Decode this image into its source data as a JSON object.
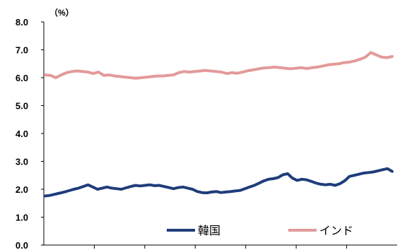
{
  "chart_data": {
    "type": "line",
    "unit_label": "（%）",
    "ylim": [
      0.0,
      8.0
    ],
    "y_ticks": [
      "0.0",
      "1.0",
      "2.0",
      "3.0",
      "4.0",
      "5.0",
      "6.0",
      "7.0",
      "8.0"
    ],
    "x_sections": 7,
    "grid": false,
    "legend_placement": "bottom-right",
    "series": [
      {
        "name": "韓国",
        "color": "#1f3d7a",
        "values": [
          1.76,
          1.78,
          1.82,
          1.86,
          1.9,
          1.95,
          2.0,
          2.04,
          2.1,
          2.16,
          2.08,
          2.0,
          2.04,
          2.08,
          2.04,
          2.02,
          2.0,
          2.05,
          2.1,
          2.14,
          2.12,
          2.14,
          2.16,
          2.13,
          2.14,
          2.1,
          2.06,
          2.02,
          2.06,
          2.08,
          2.04,
          2.0,
          1.92,
          1.88,
          1.87,
          1.9,
          1.92,
          1.88,
          1.9,
          1.92,
          1.94,
          1.96,
          2.02,
          2.08,
          2.14,
          2.22,
          2.3,
          2.36,
          2.38,
          2.42,
          2.52,
          2.56,
          2.4,
          2.32,
          2.36,
          2.34,
          2.28,
          2.22,
          2.18,
          2.16,
          2.18,
          2.14,
          2.2,
          2.3,
          2.46,
          2.5,
          2.54,
          2.58,
          2.6,
          2.62,
          2.66,
          2.7,
          2.74,
          2.64
        ]
      },
      {
        "name": "インド",
        "color": "#e39a9a",
        "values": [
          6.1,
          6.08,
          6.0,
          6.1,
          6.18,
          6.22,
          6.24,
          6.22,
          6.2,
          6.15,
          6.2,
          6.08,
          6.1,
          6.06,
          6.04,
          6.02,
          6.0,
          5.98,
          6.0,
          6.02,
          6.04,
          6.06,
          6.06,
          6.08,
          6.1,
          6.18,
          6.22,
          6.2,
          6.22,
          6.24,
          6.26,
          6.24,
          6.22,
          6.2,
          6.15,
          6.18,
          6.16,
          6.2,
          6.25,
          6.28,
          6.32,
          6.35,
          6.36,
          6.38,
          6.36,
          6.34,
          6.32,
          6.34,
          6.36,
          6.33,
          6.36,
          6.38,
          6.42,
          6.46,
          6.48,
          6.5,
          6.54,
          6.56,
          6.6,
          6.66,
          6.74,
          6.9,
          6.82,
          6.74,
          6.72,
          6.76
        ]
      }
    ]
  }
}
